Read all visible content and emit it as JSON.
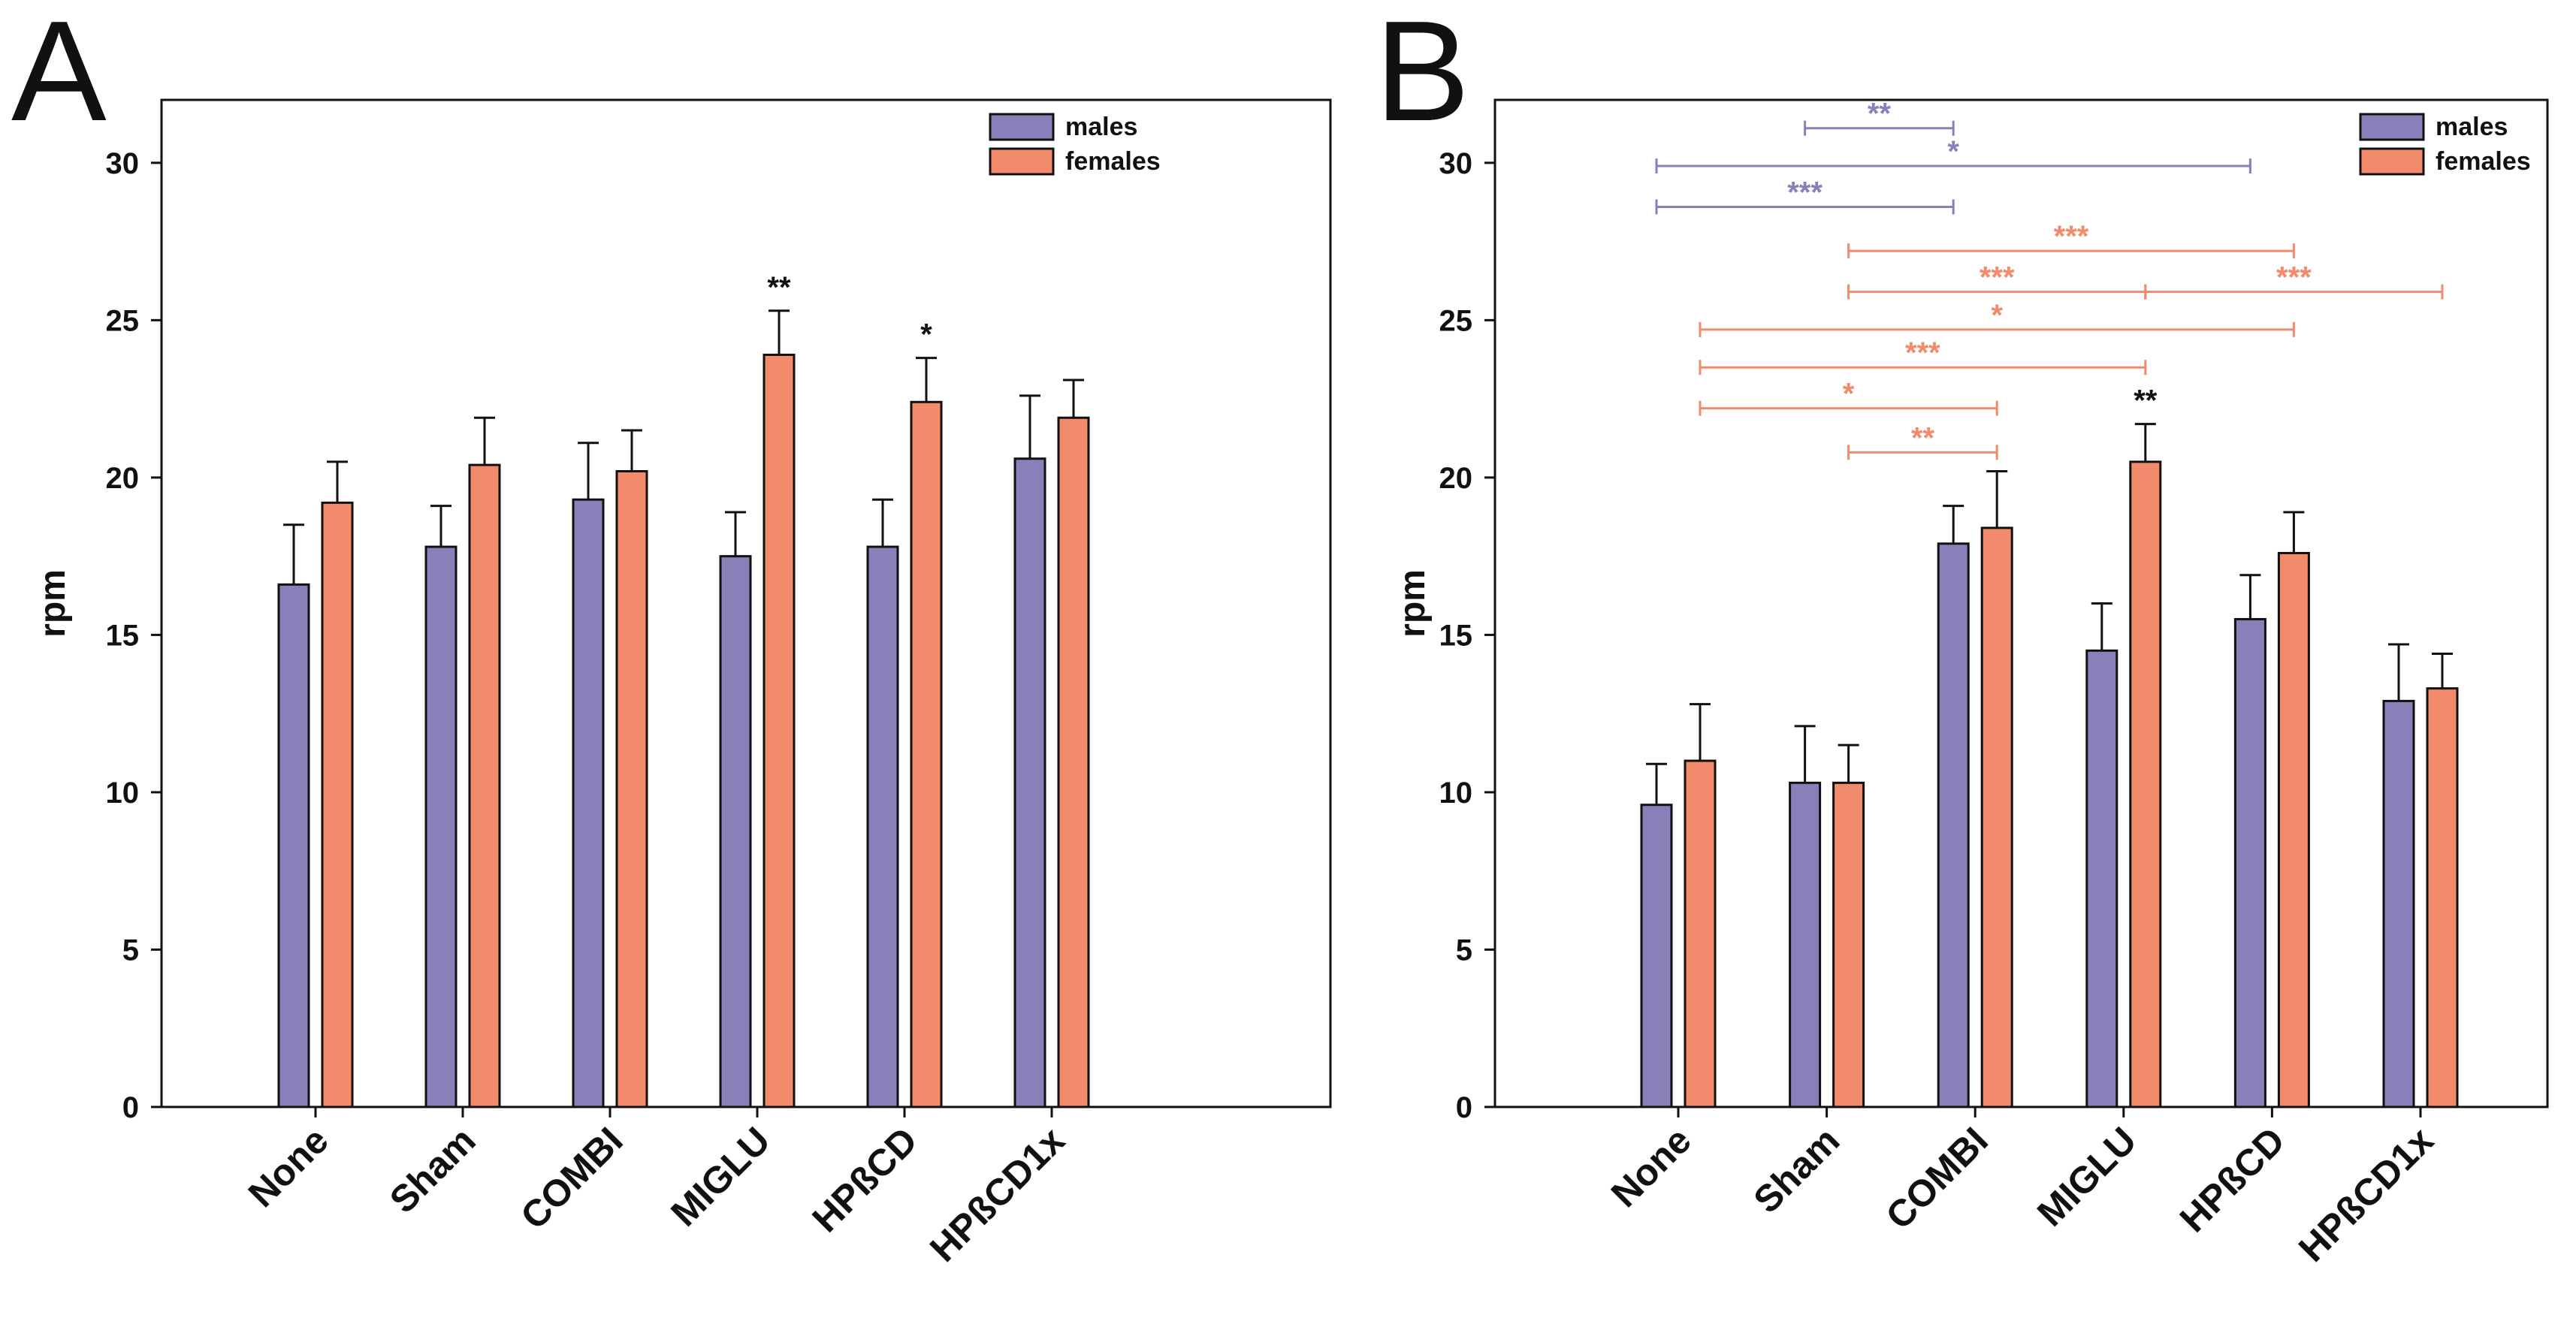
{
  "colors": {
    "males": "#8a7fb8",
    "females": "#f28b6c",
    "axis": "#111111"
  },
  "chart_data": [
    {
      "panel": "A",
      "type": "bar",
      "ylabel": "rpm",
      "ylim": [
        0,
        32
      ],
      "yticks": [
        "0",
        "5",
        "10",
        "15",
        "20",
        "25",
        "30"
      ],
      "categories": [
        "None",
        "Sham",
        "COMBI",
        "MIGLU",
        "HPßCD",
        "HPßCD1x"
      ],
      "legend_position": "top-right",
      "series": [
        {
          "name": "males",
          "color_key": "males",
          "values": [
            16.6,
            17.8,
            19.3,
            17.5,
            17.8,
            20.6
          ],
          "errors": [
            1.9,
            1.3,
            1.8,
            1.4,
            1.5,
            2.0
          ]
        },
        {
          "name": "females",
          "color_key": "females",
          "values": [
            19.2,
            20.4,
            20.2,
            23.9,
            22.4,
            21.9
          ],
          "errors": [
            1.3,
            1.5,
            1.3,
            1.4,
            1.4,
            1.2
          ]
        }
      ],
      "annotations": [
        {
          "text": "**",
          "category": 3,
          "series": 1
        },
        {
          "text": "*",
          "category": 4,
          "series": 1
        }
      ],
      "brackets": []
    },
    {
      "panel": "B",
      "type": "bar",
      "ylabel": "rpm",
      "ylim": [
        0,
        32
      ],
      "yticks": [
        "0",
        "5",
        "10",
        "15",
        "20",
        "25",
        "30"
      ],
      "categories": [
        "None",
        "Sham",
        "COMBI",
        "MIGLU",
        "HPßCD",
        "HPßCD1x"
      ],
      "legend_position": "top-right",
      "series": [
        {
          "name": "males",
          "color_key": "males",
          "values": [
            9.6,
            10.3,
            17.9,
            14.5,
            15.5,
            12.9
          ],
          "errors": [
            1.3,
            1.8,
            1.2,
            1.5,
            1.4,
            1.8
          ]
        },
        {
          "name": "females",
          "color_key": "females",
          "values": [
            11.0,
            10.3,
            18.4,
            20.5,
            17.6,
            13.3
          ],
          "errors": [
            1.8,
            1.2,
            1.8,
            1.2,
            1.3,
            1.1
          ]
        }
      ],
      "annotations": [
        {
          "text": "**",
          "category": 3,
          "series": 1
        }
      ],
      "brackets": [
        {
          "text": "**",
          "color_key": "males",
          "y": 31.1,
          "from": [
            1,
            0
          ],
          "to": [
            2,
            0
          ]
        },
        {
          "text": "*",
          "color_key": "males",
          "y": 29.9,
          "from": [
            0,
            0
          ],
          "to": [
            4,
            0
          ]
        },
        {
          "text": "***",
          "color_key": "males",
          "y": 28.6,
          "from": [
            0,
            0
          ],
          "to": [
            2,
            0
          ]
        },
        {
          "text": "***",
          "color_key": "females",
          "y": 27.2,
          "from": [
            1,
            1
          ],
          "to": [
            4,
            1
          ]
        },
        {
          "text": "***",
          "color_key": "females",
          "y": 25.9,
          "from": [
            1,
            1
          ],
          "to": [
            3,
            1
          ]
        },
        {
          "text": "***",
          "color_key": "females",
          "y": 25.9,
          "from": [
            3,
            1
          ],
          "to": [
            5,
            1
          ]
        },
        {
          "text": "*",
          "color_key": "females",
          "y": 24.7,
          "from": [
            0,
            1
          ],
          "to": [
            4,
            1
          ]
        },
        {
          "text": "***",
          "color_key": "females",
          "y": 23.5,
          "from": [
            0,
            1
          ],
          "to": [
            3,
            1
          ]
        },
        {
          "text": "*",
          "color_key": "females",
          "y": 22.2,
          "from": [
            0,
            1
          ],
          "to": [
            2,
            1
          ]
        },
        {
          "text": "**",
          "color_key": "females",
          "y": 20.8,
          "from": [
            1,
            1
          ],
          "to": [
            2,
            1
          ]
        }
      ]
    }
  ]
}
